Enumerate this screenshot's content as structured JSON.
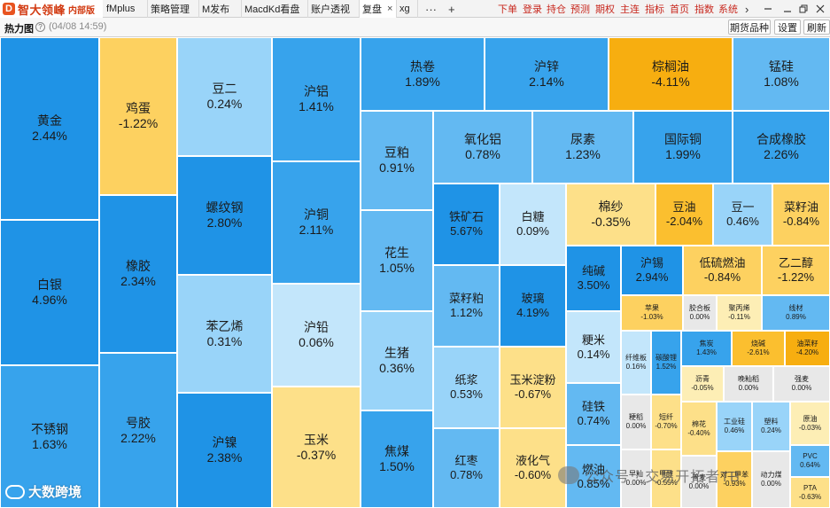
{
  "app": {
    "logo_text": "智大领峰",
    "logo_sub": "内部版",
    "tabs": [
      {
        "label": "fMplus",
        "active": false
      },
      {
        "label": "策略管理",
        "active": false
      },
      {
        "label": "M发布",
        "active": false
      },
      {
        "label": "MacdKd看盘",
        "active": false
      },
      {
        "label": "账户透视",
        "active": false
      },
      {
        "label": "复盘",
        "active": true,
        "close": "×"
      },
      {
        "label": "xg",
        "active": false
      }
    ],
    "tab_more": "···",
    "tab_add": "+",
    "menu": [
      "下单",
      "登录",
      "持仓",
      "预测",
      "期权",
      "主连",
      "指标",
      "首页",
      "指数",
      "系统"
    ],
    "menu_more": "›"
  },
  "toolbar": {
    "title": "热力图",
    "help": "?",
    "timestamp": "(04/08 14:59)",
    "buttons": [
      "期货品种",
      "设置",
      "刷新"
    ]
  },
  "heatmap": [
    {
      "name": "黄金",
      "value": "2.44%",
      "change": 2.44
    },
    {
      "name": "白银",
      "value": "4.96%",
      "change": 4.96
    },
    {
      "name": "不锈钢",
      "value": "1.63%",
      "change": 1.63
    },
    {
      "name": "鸡蛋",
      "value": "-1.22%",
      "change": -1.22
    },
    {
      "name": "橡胶",
      "value": "2.34%",
      "change": 2.34
    },
    {
      "name": "号胶",
      "value": "2.22%",
      "change": 2.22
    },
    {
      "name": "豆二",
      "value": "0.24%",
      "change": 0.24
    },
    {
      "name": "螺纹钢",
      "value": "2.80%",
      "change": 2.8
    },
    {
      "name": "苯乙烯",
      "value": "0.31%",
      "change": 0.31
    },
    {
      "name": "沪镍",
      "value": "2.38%",
      "change": 2.38
    },
    {
      "name": "沪铝",
      "value": "1.41%",
      "change": 1.41
    },
    {
      "name": "沪铜",
      "value": "2.11%",
      "change": 2.11
    },
    {
      "name": "沪铅",
      "value": "0.06%",
      "change": 0.06
    },
    {
      "name": "玉米",
      "value": "-0.37%",
      "change": -0.37
    },
    {
      "name": "热卷",
      "value": "1.89%",
      "change": 1.89
    },
    {
      "name": "沪锌",
      "value": "2.14%",
      "change": 2.14
    },
    {
      "name": "棕榈油",
      "value": "-4.11%",
      "change": -4.11
    },
    {
      "name": "锰硅",
      "value": "1.08%",
      "change": 1.08
    },
    {
      "name": "豆粕",
      "value": "0.91%",
      "change": 0.91
    },
    {
      "name": "花生",
      "value": "1.05%",
      "change": 1.05
    },
    {
      "name": "生猪",
      "value": "0.36%",
      "change": 0.36
    },
    {
      "name": "焦煤",
      "value": "1.50%",
      "change": 1.5
    },
    {
      "name": "氧化铝",
      "value": "0.78%",
      "change": 0.78
    },
    {
      "name": "尿素",
      "value": "1.23%",
      "change": 1.23
    },
    {
      "name": "国际铜",
      "value": "1.99%",
      "change": 1.99
    },
    {
      "name": "合成橡胶",
      "value": "2.26%",
      "change": 2.26
    },
    {
      "name": "铁矿石",
      "value": "5.67%",
      "change": 5.67
    },
    {
      "name": "白糖",
      "value": "0.09%",
      "change": 0.09
    },
    {
      "name": "菜籽粕",
      "value": "1.12%",
      "change": 1.12
    },
    {
      "name": "玻璃",
      "value": "4.19%",
      "change": 4.19
    },
    {
      "name": "纸浆",
      "value": "0.53%",
      "change": 0.53
    },
    {
      "name": "玉米淀粉",
      "value": "-0.67%",
      "change": -0.67
    },
    {
      "name": "红枣",
      "value": "0.78%",
      "change": 0.78
    },
    {
      "name": "液化气",
      "value": "-0.60%",
      "change": -0.6
    },
    {
      "name": "棉纱",
      "value": "-0.35%",
      "change": -0.35
    },
    {
      "name": "豆油",
      "value": "-2.04%",
      "change": -2.04
    },
    {
      "name": "豆一",
      "value": "0.46%",
      "change": 0.46
    },
    {
      "name": "菜籽油",
      "value": "-0.84%",
      "change": -0.84
    },
    {
      "name": "纯碱",
      "value": "3.50%",
      "change": 3.5
    },
    {
      "name": "沪锡",
      "value": "2.94%",
      "change": 2.94
    },
    {
      "name": "低硫燃油",
      "value": "-0.84%",
      "change": -0.84
    },
    {
      "name": "乙二醇",
      "value": "-1.22%",
      "change": -1.22
    },
    {
      "name": "粳米",
      "value": "0.14%",
      "change": 0.14
    },
    {
      "name": "硅铁",
      "value": "0.74%",
      "change": 0.74
    },
    {
      "name": "燃油",
      "value": "0.85%",
      "change": 0.85
    },
    {
      "name": "苹果",
      "value": "-1.03%",
      "change": -1.03
    },
    {
      "name": "胶合板",
      "value": "0.00%",
      "change": 0.0
    },
    {
      "name": "聚丙烯",
      "value": "-0.11%",
      "change": -0.11
    },
    {
      "name": "线材",
      "value": "0.89%",
      "change": 0.89
    },
    {
      "name": "纤维板",
      "value": "0.16%",
      "change": 0.16
    },
    {
      "name": "碳酸锂",
      "value": "1.52%",
      "change": 1.52
    },
    {
      "name": "焦炭",
      "value": "1.43%",
      "change": 1.43
    },
    {
      "name": "烧碱",
      "value": "-2.61%",
      "change": -2.61
    },
    {
      "name": "油菜籽",
      "value": "-4.20%",
      "change": -4.2
    },
    {
      "name": "沥青",
      "value": "-0.05%",
      "change": -0.05
    },
    {
      "name": "晚籼稻",
      "value": "0.00%",
      "change": 0.0
    },
    {
      "name": "强麦",
      "value": "0.00%",
      "change": 0.0
    },
    {
      "name": "粳稻",
      "value": "0.00%",
      "change": 0.0
    },
    {
      "name": "短纤",
      "value": "-0.70%",
      "change": -0.7
    },
    {
      "name": "工业硅",
      "value": "0.46%",
      "change": 0.46
    },
    {
      "name": "塑料",
      "value": "0.24%",
      "change": 0.24
    },
    {
      "name": "原油",
      "value": "-0.03%",
      "change": -0.03
    },
    {
      "name": "棉花",
      "value": "-0.40%",
      "change": -0.4
    },
    {
      "name": "PVC",
      "value": "0.64%",
      "change": 0.64
    },
    {
      "name": "早籼",
      "value": "0.00%",
      "change": 0.0
    },
    {
      "name": "甲醇",
      "value": "-0.55%",
      "change": -0.55
    },
    {
      "name": "普麦",
      "value": "0.00%",
      "change": 0.0
    },
    {
      "name": "对二甲苯",
      "value": "-0.93%",
      "change": -0.93
    },
    {
      "name": "动力煤",
      "value": "0.00%",
      "change": 0.0
    },
    {
      "name": "PTA",
      "value": "-0.63%",
      "change": -0.63
    }
  ],
  "watermark": {
    "left": "大数跨境",
    "right": "公众号 · 交易开拓者TB"
  },
  "colors": {
    "up_strong": "#1f93e6",
    "up_light": "#c3e6fb",
    "flat": "#e8e8e8",
    "down_light": "#fdeeb5",
    "down_strong": "#f7ae10",
    "menu_text": "#c8281e"
  }
}
